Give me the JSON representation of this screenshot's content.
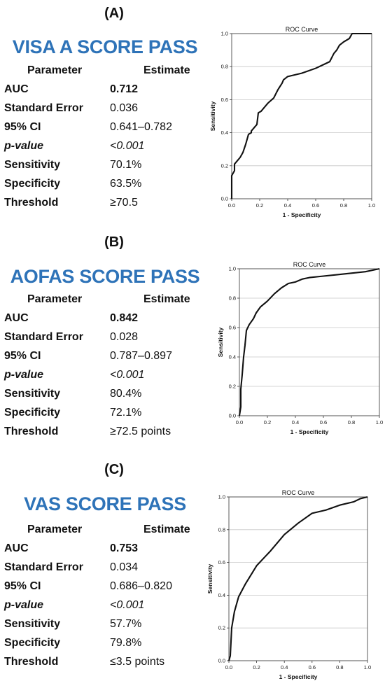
{
  "panels": [
    {
      "letter": "(A)",
      "title": "VISA A SCORE PASS",
      "table_header": {
        "parameter": "Parameter",
        "estimate": "Estimate"
      },
      "rows": [
        {
          "label": "AUC",
          "value": "0.712"
        },
        {
          "label": "Standard Error",
          "value": "0.036"
        },
        {
          "label": "95% CI",
          "value": "0.641–0.782"
        },
        {
          "label": "p-value",
          "value": "<0.001"
        },
        {
          "label": "Sensitivity",
          "value": "70.1%"
        },
        {
          "label": "Specificity",
          "value": "63.5%"
        },
        {
          "label": "Threshold",
          "value": "≥70.5"
        }
      ]
    },
    {
      "letter": "(B)",
      "title": "AOFAS SCORE PASS",
      "table_header": {
        "parameter": "Parameter",
        "estimate": "Estimate"
      },
      "rows": [
        {
          "label": "AUC",
          "value": "0.842"
        },
        {
          "label": "Standard Error",
          "value": "0.028"
        },
        {
          "label": "95% CI",
          "value": "0.787–0.897"
        },
        {
          "label": "p-value",
          "value": "<0.001"
        },
        {
          "label": "Sensitivity",
          "value": "80.4%"
        },
        {
          "label": "Specificity",
          "value": "72.1%"
        },
        {
          "label": "Threshold",
          "value": "≥72.5 points"
        }
      ]
    },
    {
      "letter": "(C)",
      "title": "VAS SCORE PASS",
      "table_header": {
        "parameter": "Parameter",
        "estimate": "Estimate"
      },
      "rows": [
        {
          "label": "AUC",
          "value": "0.753"
        },
        {
          "label": "Standard Error",
          "value": "0.034"
        },
        {
          "label": "95% CI",
          "value": "0.686–0.820"
        },
        {
          "label": "p-value",
          "value": "<0.001"
        },
        {
          "label": "Sensitivity",
          "value": "57.7%"
        },
        {
          "label": "Specificity",
          "value": "79.8%"
        },
        {
          "label": "Threshold",
          "value": "≤3.5 points"
        }
      ]
    }
  ],
  "chart_data": [
    {
      "type": "line",
      "title": "ROC Curve",
      "xlabel": "1 - Specificity",
      "ylabel": "Sensitivity",
      "xlim": [
        0,
        1
      ],
      "ylim": [
        0,
        1
      ],
      "x_ticks": [
        "0.0",
        "0.2",
        "0.4",
        "0.6",
        "0.8",
        "1.0"
      ],
      "y_ticks": [
        "0.0",
        "0.2",
        "0.4",
        "0.6",
        "0.8",
        "1.0"
      ],
      "grid": "horizontal",
      "series": [
        {
          "x": [
            0,
            0,
            0.02,
            0.02,
            0.04,
            0.06,
            0.08,
            0.1,
            0.12,
            0.14,
            0.14,
            0.18,
            0.19,
            0.21,
            0.24,
            0.26,
            0.3,
            0.33,
            0.36,
            0.37,
            0.4,
            0.5,
            0.6,
            0.7,
            0.73,
            0.75,
            0.77,
            0.8,
            0.82,
            0.84,
            0.86,
            1.0
          ],
          "y": [
            0,
            0.14,
            0.17,
            0.21,
            0.23,
            0.25,
            0.28,
            0.33,
            0.39,
            0.4,
            0.41,
            0.45,
            0.52,
            0.53,
            0.56,
            0.58,
            0.61,
            0.66,
            0.7,
            0.72,
            0.74,
            0.76,
            0.79,
            0.83,
            0.88,
            0.9,
            0.93,
            0.95,
            0.96,
            0.97,
            1.0,
            1.0
          ]
        }
      ]
    },
    {
      "type": "line",
      "title": "ROC Curve",
      "xlabel": "1 - Specificity",
      "ylabel": "Sensitivity",
      "xlim": [
        0,
        1
      ],
      "ylim": [
        0,
        1
      ],
      "x_ticks": [
        "0.0",
        "0.2",
        "0.4",
        "0.6",
        "0.8",
        "1.0"
      ],
      "y_ticks": [
        "0.0",
        "0.2",
        "0.4",
        "0.6",
        "0.8",
        "1.0"
      ],
      "grid": "horizontal",
      "series": [
        {
          "x": [
            0,
            0.01,
            0.01,
            0.02,
            0.03,
            0.04,
            0.05,
            0.07,
            0.1,
            0.12,
            0.15,
            0.2,
            0.25,
            0.3,
            0.35,
            0.4,
            0.45,
            0.5,
            0.6,
            0.7,
            0.8,
            0.9,
            0.95,
            1.0
          ],
          "y": [
            0,
            0.06,
            0.18,
            0.28,
            0.4,
            0.48,
            0.58,
            0.62,
            0.66,
            0.7,
            0.74,
            0.78,
            0.83,
            0.87,
            0.9,
            0.91,
            0.93,
            0.94,
            0.95,
            0.96,
            0.97,
            0.98,
            0.99,
            1.0
          ]
        }
      ]
    },
    {
      "type": "line",
      "title": "ROC Curve",
      "xlabel": "1 - Specificity",
      "ylabel": "Sensitivity",
      "xlim": [
        0,
        1
      ],
      "ylim": [
        0,
        1
      ],
      "x_ticks": [
        "0.0",
        "0.2",
        "0.4",
        "0.6",
        "0.8",
        "1.0"
      ],
      "y_ticks": [
        "0.0",
        "0.2",
        "0.4",
        "0.6",
        "0.8",
        "1.0"
      ],
      "grid": "horizontal",
      "series": [
        {
          "x": [
            0,
            0.01,
            0.02,
            0.04,
            0.07,
            0.12,
            0.2,
            0.3,
            0.4,
            0.5,
            0.6,
            0.7,
            0.8,
            0.9,
            0.95,
            1.0
          ],
          "y": [
            0,
            0.03,
            0.2,
            0.3,
            0.39,
            0.47,
            0.58,
            0.67,
            0.77,
            0.84,
            0.9,
            0.92,
            0.95,
            0.97,
            0.99,
            1.0
          ]
        }
      ]
    }
  ]
}
